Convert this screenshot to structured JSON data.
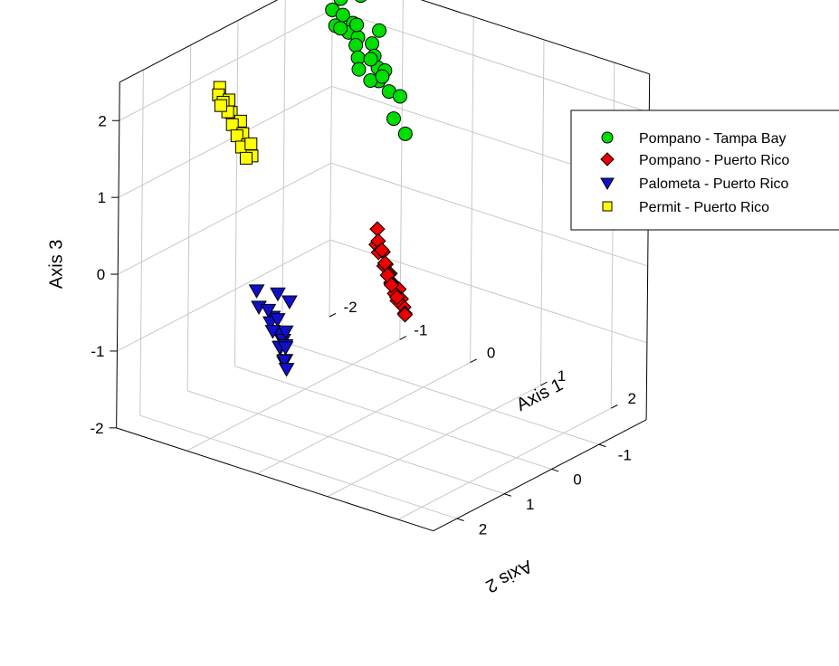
{
  "chart_data": {
    "type": "scatter",
    "title": "",
    "xlabel": "Axis 1",
    "ylabel": "Axis 2",
    "zlabel": "Axis 3",
    "xlim": [
      -2,
      2.5
    ],
    "ylim": [
      -2,
      2.5
    ],
    "zlim": [
      -2,
      2.5
    ],
    "x_ticks": [
      "-2",
      "-1",
      "0",
      "1",
      "2"
    ],
    "y_ticks": [
      "-1",
      "0",
      "1",
      "2"
    ],
    "z_ticks": [
      "-2",
      "-1",
      "0",
      "1",
      "2"
    ],
    "grid": true,
    "legend_position": "top-right",
    "series": [
      {
        "name": "Pompano - Tampa Bay",
        "marker": "circle",
        "color": "#00dd00",
        "points": [
          [
            -1.95,
            -1.9,
            2.45
          ],
          [
            -1.9,
            -1.78,
            2.4
          ],
          [
            -1.85,
            -1.95,
            2.2
          ],
          [
            -1.8,
            -1.7,
            2.15
          ],
          [
            -1.75,
            -1.85,
            2.05
          ],
          [
            -1.7,
            -1.62,
            2.0
          ],
          [
            -1.65,
            -1.92,
            1.95
          ],
          [
            -1.6,
            -1.75,
            1.9
          ],
          [
            -1.55,
            -1.5,
            2.05
          ],
          [
            -1.5,
            -1.8,
            1.85
          ],
          [
            -1.45,
            -1.68,
            1.8
          ],
          [
            -1.4,
            -1.95,
            1.75
          ],
          [
            -1.35,
            -1.58,
            1.7
          ],
          [
            -1.3,
            -1.85,
            1.65
          ],
          [
            -1.25,
            -1.45,
            1.62
          ],
          [
            -1.2,
            -1.78,
            1.55
          ],
          [
            -1.18,
            -1.9,
            1.48
          ],
          [
            -1.1,
            -1.65,
            1.45
          ],
          [
            -1.05,
            -1.4,
            1.55
          ],
          [
            -1.0,
            -1.72,
            1.32
          ],
          [
            -0.95,
            -1.88,
            1.22
          ],
          [
            -0.85,
            -1.6,
            1.05
          ],
          [
            -0.75,
            -1.7,
            0.85
          ],
          [
            -1.6,
            -2.0,
            2.3
          ],
          [
            -1.3,
            -1.95,
            1.95
          ],
          [
            -1.15,
            -1.55,
            1.75
          ],
          [
            -0.95,
            -1.5,
            1.6
          ],
          [
            -1.4,
            -1.62,
            2.1
          ]
        ]
      },
      {
        "name": "Pompano - Puerto Rico",
        "marker": "diamond",
        "color": "#ee0000",
        "points": [
          [
            -1.0,
            -1.5,
            -0.4
          ],
          [
            -0.98,
            -1.45,
            -0.58
          ],
          [
            -0.95,
            -1.55,
            -0.7
          ],
          [
            -0.92,
            -1.4,
            -0.5
          ],
          [
            -0.9,
            -1.5,
            -0.85
          ],
          [
            -0.88,
            -1.35,
            -0.62
          ],
          [
            -0.85,
            -1.55,
            -0.95
          ],
          [
            -0.82,
            -1.42,
            -0.78
          ],
          [
            -0.8,
            -1.3,
            -0.55
          ],
          [
            -0.78,
            -1.48,
            -1.02
          ],
          [
            -0.75,
            -1.38,
            -0.88
          ],
          [
            -0.72,
            -1.25,
            -0.68
          ],
          [
            -0.7,
            -1.52,
            -1.1
          ],
          [
            -0.68,
            -1.32,
            -0.95
          ],
          [
            -0.65,
            -1.2,
            -0.8
          ],
          [
            -0.62,
            -1.45,
            -1.18
          ],
          [
            -0.6,
            -1.28,
            -1.05
          ],
          [
            -0.58,
            -1.18,
            -0.9
          ],
          [
            -0.55,
            -1.4,
            -1.25
          ],
          [
            -0.52,
            -1.22,
            -1.1
          ],
          [
            -0.5,
            -1.35,
            -1.3
          ],
          [
            -0.48,
            -1.15,
            -1.02
          ],
          [
            -0.45,
            -1.28,
            -1.28
          ]
        ]
      },
      {
        "name": "Palometa - Puerto Rico",
        "marker": "triangle-down",
        "color": "#1010cc",
        "points": [
          [
            -0.9,
            1.2,
            -0.3
          ],
          [
            -0.8,
            1.3,
            -0.45
          ],
          [
            -0.7,
            1.15,
            -0.6
          ],
          [
            -0.6,
            1.4,
            -0.4
          ],
          [
            -0.55,
            1.25,
            -0.75
          ],
          [
            -0.5,
            1.5,
            -0.5
          ],
          [
            -0.45,
            1.35,
            -0.85
          ],
          [
            -0.4,
            1.6,
            -0.55
          ],
          [
            -0.35,
            1.45,
            -0.7
          ],
          [
            -0.3,
            1.65,
            -0.35
          ],
          [
            -0.25,
            1.55,
            -0.9
          ],
          [
            -0.2,
            1.75,
            -0.65
          ],
          [
            -0.15,
            1.7,
            -0.45
          ],
          [
            -0.1,
            1.8,
            -0.8
          ],
          [
            -0.05,
            1.85,
            -0.55
          ],
          [
            0.0,
            1.95,
            -0.7
          ],
          [
            0.05,
            2.0,
            -0.5
          ],
          [
            0.1,
            2.05,
            -0.75
          ],
          [
            -0.6,
            1.2,
            -0.25
          ],
          [
            -0.3,
            1.4,
            -0.2
          ]
        ]
      },
      {
        "name": "Permit - Puerto Rico",
        "marker": "square",
        "color": "#ffff00",
        "points": [
          [
            -1.55,
            1.05,
            2.1
          ],
          [
            -1.5,
            1.15,
            2.05
          ],
          [
            -1.45,
            1.0,
            1.95
          ],
          [
            -1.4,
            1.2,
            2.0
          ],
          [
            -1.35,
            1.1,
            1.85
          ],
          [
            -1.3,
            1.25,
            1.92
          ],
          [
            -1.25,
            1.05,
            1.75
          ],
          [
            -1.2,
            1.3,
            1.8
          ],
          [
            -1.15,
            1.15,
            1.65
          ],
          [
            -1.1,
            1.35,
            1.7
          ],
          [
            -1.05,
            1.2,
            1.55
          ],
          [
            -1.0,
            1.4,
            1.6
          ],
          [
            -0.95,
            1.25,
            1.45
          ],
          [
            -0.9,
            1.45,
            1.5
          ],
          [
            -1.3,
            1.4,
            2.05
          ],
          [
            -1.1,
            1.05,
            1.5
          ]
        ]
      }
    ]
  }
}
